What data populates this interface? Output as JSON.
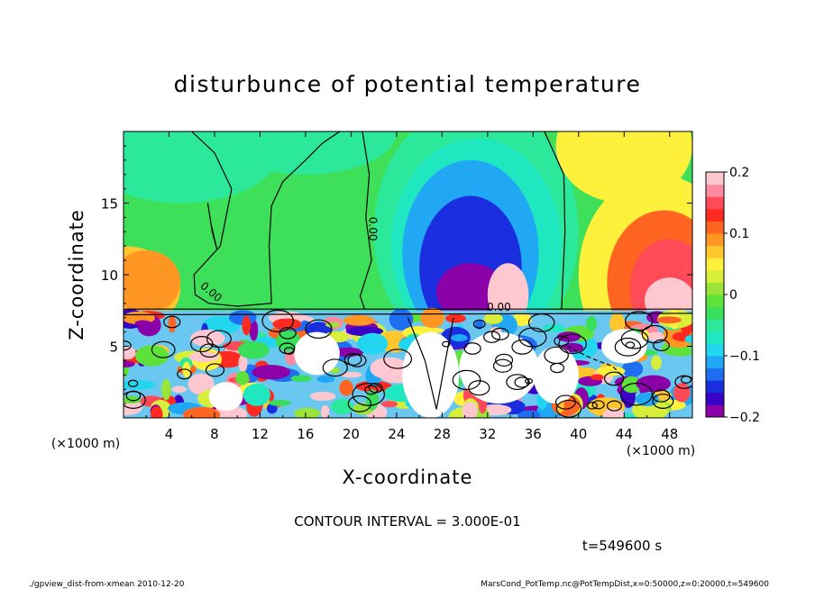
{
  "chart_data": {
    "type": "heatmap",
    "title": "disturbunce of potential temperature",
    "xlabel": "X-coordinate",
    "ylabel": "Z-coordinate",
    "x_unit": "(×1000 m)",
    "z_unit": "(×1000 m)",
    "xlim": [
      0,
      50
    ],
    "zlim": [
      0,
      20
    ],
    "x_ticks": [
      4,
      8,
      12,
      16,
      20,
      24,
      28,
      32,
      36,
      40,
      44,
      48
    ],
    "z_ticks": [
      5,
      10,
      15
    ],
    "colorbar": {
      "min": -0.2,
      "max": 0.2,
      "ticks": [
        {
          "value": 0.2,
          "label": "0.2"
        },
        {
          "value": 0.1,
          "label": "0.1"
        },
        {
          "value": 0,
          "label": "0"
        },
        {
          "value": -0.1,
          "label": "−0.1"
        },
        {
          "value": -0.2,
          "label": "−0.2"
        }
      ],
      "colors": [
        "#8b00a8",
        "#3a00c8",
        "#1a2ee0",
        "#1f6ef2",
        "#20a8f5",
        "#21d6ee",
        "#1fe8c0",
        "#2ce89a",
        "#39de5a",
        "#5ee23a",
        "#9ae43a",
        "#d7ee3a",
        "#fff03c",
        "#ffc62e",
        "#ff9624",
        "#ff6420",
        "#ff2a20",
        "#ff4a58",
        "#ff8aa0",
        "#ffc8d0"
      ]
    },
    "contour_labels": [
      {
        "x": 21.6,
        "z": 13.2,
        "text": "0.00"
      },
      {
        "x": 7.5,
        "z": 8.6,
        "text": "0.00"
      },
      {
        "x": 33.0,
        "z": 7.5,
        "text": "0.00"
      }
    ],
    "contour_interval": "CONTOUR INTERVAL = 3.000E-01",
    "time_label": "t=549600 s"
  },
  "footer": {
    "left": "./gpview_dist-from-xmean  2010-12-20",
    "right": "MarsCond_PotTemp.nc@PotTempDist,x=0:50000,z=0:20000,t=549600"
  }
}
